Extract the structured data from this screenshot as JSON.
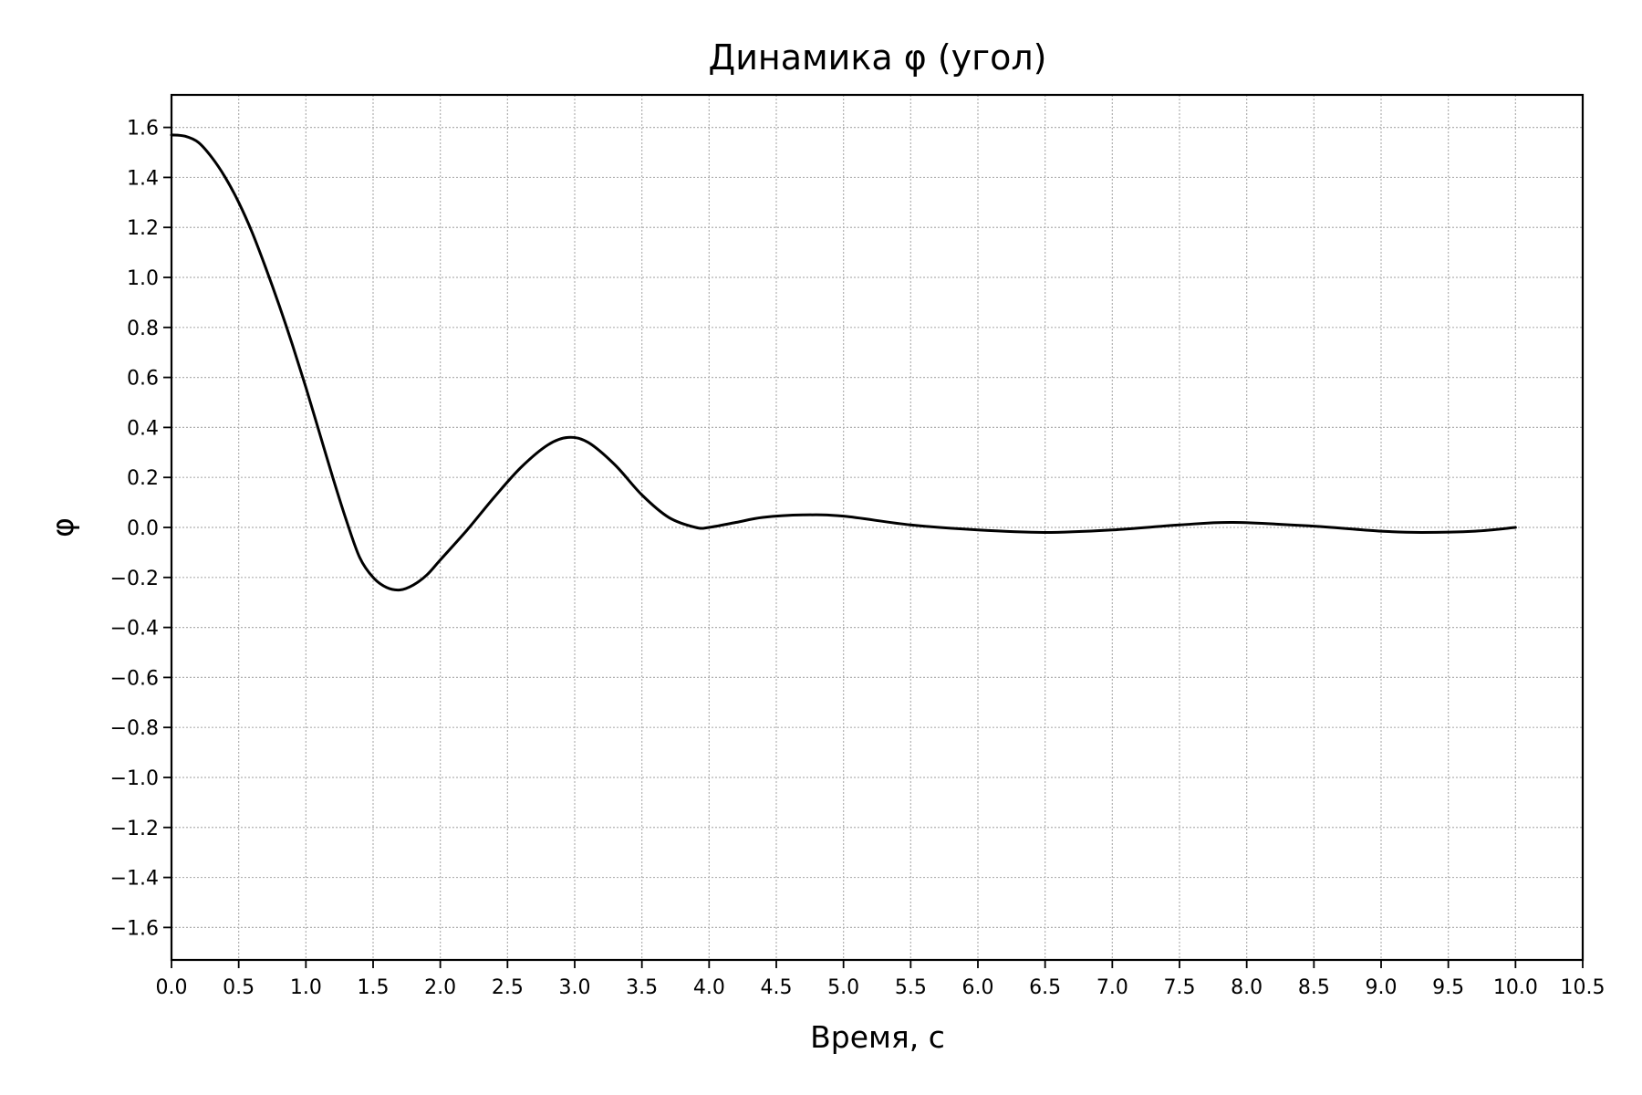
{
  "chart_data": {
    "type": "line",
    "title": "Динамика φ (угол)",
    "xlabel": "Время, с",
    "ylabel": "φ",
    "xlim": [
      0.0,
      10.5
    ],
    "ylim": [
      -1.73,
      1.73
    ],
    "xticks": [
      0.0,
      0.5,
      1.0,
      1.5,
      2.0,
      2.5,
      3.0,
      3.5,
      4.0,
      4.5,
      5.0,
      5.5,
      6.0,
      6.5,
      7.0,
      7.5,
      8.0,
      8.5,
      9.0,
      9.5,
      10.0,
      10.5
    ],
    "xtick_labels": [
      "0.0",
      "0.5",
      "1.0",
      "1.5",
      "2.0",
      "2.5",
      "3.0",
      "3.5",
      "4.0",
      "4.5",
      "5.0",
      "5.5",
      "6.0",
      "6.5",
      "7.0",
      "7.5",
      "8.0",
      "8.5",
      "9.0",
      "9.5",
      "10.0",
      "10.5"
    ],
    "yticks": [
      1.6,
      1.4,
      1.2,
      1.0,
      0.8,
      0.6,
      0.4,
      0.2,
      0.0,
      -0.2,
      -0.4,
      -0.6,
      -0.8,
      -1.0,
      -1.2,
      -1.4,
      -1.6
    ],
    "ytick_labels": [
      "1.6",
      "1.4",
      "1.2",
      "1.0",
      "0.8",
      "0.6",
      "0.4",
      "0.2",
      "0.0",
      "−0.2",
      "−0.4",
      "−0.6",
      "−0.8",
      "−1.0",
      "−1.2",
      "−1.4",
      "−1.6"
    ],
    "grid": true,
    "line_color": "#000000",
    "grid_color": "#b0b0b0",
    "series": [
      {
        "x": [
          0.0,
          0.1,
          0.2,
          0.3,
          0.4,
          0.5,
          0.6,
          0.7,
          0.8,
          0.9,
          1.0,
          1.1,
          1.2,
          1.3,
          1.4,
          1.5,
          1.6,
          1.7,
          1.8,
          1.9,
          2.0,
          2.2,
          2.4,
          2.6,
          2.8,
          2.95,
          3.1,
          3.3,
          3.5,
          3.7,
          3.9,
          4.0,
          4.2,
          4.4,
          4.7,
          5.0,
          5.5,
          6.0,
          6.5,
          7.0,
          7.5,
          7.9,
          8.5,
          9.0,
          9.3,
          9.7,
          10.0
        ],
        "y": [
          1.57,
          1.565,
          1.54,
          1.48,
          1.4,
          1.3,
          1.18,
          1.04,
          0.89,
          0.73,
          0.56,
          0.38,
          0.2,
          0.03,
          -0.12,
          -0.2,
          -0.24,
          -0.25,
          -0.23,
          -0.19,
          -0.13,
          -0.01,
          0.12,
          0.24,
          0.33,
          0.36,
          0.34,
          0.25,
          0.13,
          0.04,
          0.0,
          0.0,
          0.02,
          0.04,
          0.05,
          0.045,
          0.01,
          -0.01,
          -0.02,
          -0.01,
          0.01,
          0.02,
          0.005,
          -0.015,
          -0.02,
          -0.015,
          0.0
        ]
      }
    ]
  }
}
